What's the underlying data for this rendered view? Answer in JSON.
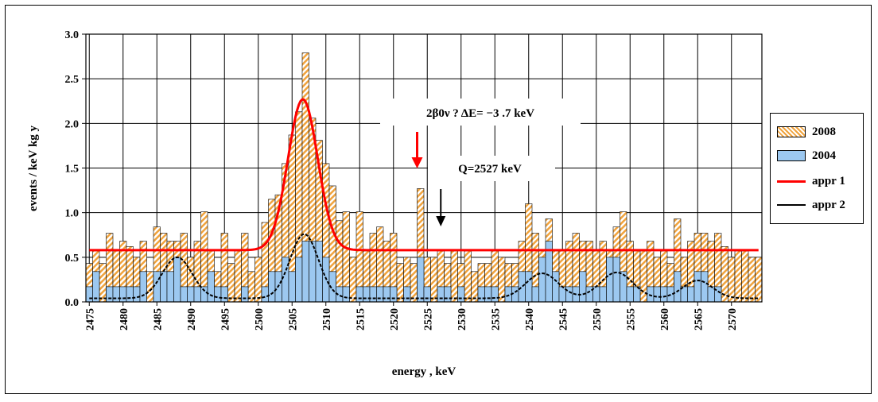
{
  "chart_data": {
    "type": "bar",
    "ylabel": "events / keV kg y",
    "xlabel": "energy , keV",
    "xlim": [
      2474.5,
      2574.5
    ],
    "ylim": [
      0,
      3.0
    ],
    "yticks": [
      "0.0",
      "0.5",
      "1.0",
      "1.5",
      "2.0",
      "2.5",
      "3.0"
    ],
    "xtick_values": [
      2475,
      2480,
      2485,
      2490,
      2495,
      2500,
      2505,
      2510,
      2515,
      2520,
      2525,
      2530,
      2535,
      2540,
      2545,
      2550,
      2555,
      2560,
      2565,
      2570
    ],
    "grid": true,
    "legend_position": "right",
    "colors": {
      "2008": "#f0a33d",
      "2004": "#9cc8f0",
      "appr 1": "#ff0000",
      "appr 2": "#000000"
    },
    "bins_start": 2475,
    "bin_width": 1,
    "series": [
      {
        "name": "2008",
        "style": "hatched-orange",
        "values": [
          0.43,
          0.57,
          0.43,
          0.77,
          0.57,
          0.68,
          0.62,
          0.5,
          0.68,
          0.34,
          0.84,
          0.77,
          0.68,
          0.68,
          0.77,
          0.5,
          0.68,
          1.01,
          0.57,
          0.34,
          0.77,
          0.43,
          0.57,
          0.77,
          0.34,
          0.5,
          0.89,
          1.15,
          1.2,
          1.55,
          1.87,
          2.13,
          2.79,
          2.06,
          1.81,
          1.55,
          1.3,
          0.91,
          1.01,
          0.5,
          1.01,
          0.57,
          0.77,
          0.84,
          0.68,
          0.77,
          0.43,
          0.5,
          0.43,
          1.27,
          0.5,
          0.5,
          0.57,
          0.43,
          0.57,
          0.43,
          0.57,
          0.34,
          0.43,
          0.43,
          0.57,
          0.5,
          0.43,
          0.43,
          0.68,
          1.1,
          0.77,
          0.57,
          0.93,
          0.57,
          0.57,
          0.68,
          0.77,
          0.68,
          0.68,
          0.57,
          0.68,
          0.57,
          0.84,
          1.01,
          0.68,
          0.57,
          0.57,
          0.68,
          0.5,
          0.57,
          0.43,
          0.93,
          0.5,
          0.68,
          0.77,
          0.77,
          0.68,
          0.77,
          0.62,
          0.5,
          0.57,
          0.57,
          0.5,
          0.5
        ]
      },
      {
        "name": "2004",
        "style": "solid-blue",
        "values": [
          0.17,
          0.34,
          0.0,
          0.17,
          0.17,
          0.17,
          0.17,
          0.17,
          0.34,
          0.0,
          0.34,
          0.34,
          0.34,
          0.5,
          0.17,
          0.17,
          0.17,
          0.17,
          0.34,
          0.17,
          0.17,
          0.0,
          0.0,
          0.17,
          0.0,
          0.0,
          0.17,
          0.34,
          0.34,
          0.5,
          0.34,
          0.5,
          0.68,
          0.68,
          0.68,
          0.5,
          0.34,
          0.17,
          0.17,
          0.0,
          0.17,
          0.17,
          0.17,
          0.17,
          0.17,
          0.17,
          0.0,
          0.17,
          0.0,
          0.5,
          0.17,
          0.0,
          0.17,
          0.17,
          0.0,
          0.17,
          0.0,
          0.0,
          0.17,
          0.17,
          0.17,
          0.0,
          0.17,
          0.17,
          0.34,
          0.34,
          0.17,
          0.5,
          0.68,
          0.34,
          0.17,
          0.17,
          0.17,
          0.34,
          0.17,
          0.17,
          0.17,
          0.5,
          0.5,
          0.34,
          0.17,
          0.17,
          0.0,
          0.17,
          0.17,
          0.17,
          0.17,
          0.34,
          0.17,
          0.17,
          0.34,
          0.34,
          0.17,
          0.17,
          0.0,
          0.0,
          0.0,
          0.0,
          0.0,
          0.0
        ]
      },
      {
        "name": "appr 1",
        "style": "line",
        "baseline": 0.58,
        "peaks": [
          {
            "center": 2506.6,
            "height": 1.69,
            "sigma": 2.2
          }
        ]
      },
      {
        "name": "appr 2",
        "style": "line",
        "baseline": 0.04,
        "peaks": [
          {
            "center": 2488,
            "height": 0.46,
            "sigma": 2.2
          },
          {
            "center": 2506.8,
            "height": 0.72,
            "sigma": 2.1
          },
          {
            "center": 2542,
            "height": 0.28,
            "sigma": 2.4
          },
          {
            "center": 2553,
            "height": 0.29,
            "sigma": 2.4
          },
          {
            "center": 2565,
            "height": 0.2,
            "sigma": 2.2
          }
        ]
      }
    ],
    "annotations": [
      {
        "text": "2β0ν ? ΔE= −3 .7 keV",
        "arrow_x": 2523.5,
        "arrow_color": "#ff0000"
      },
      {
        "text": "Q=2527 keV",
        "arrow_x": 2527,
        "arrow_color": "#000000"
      }
    ]
  }
}
